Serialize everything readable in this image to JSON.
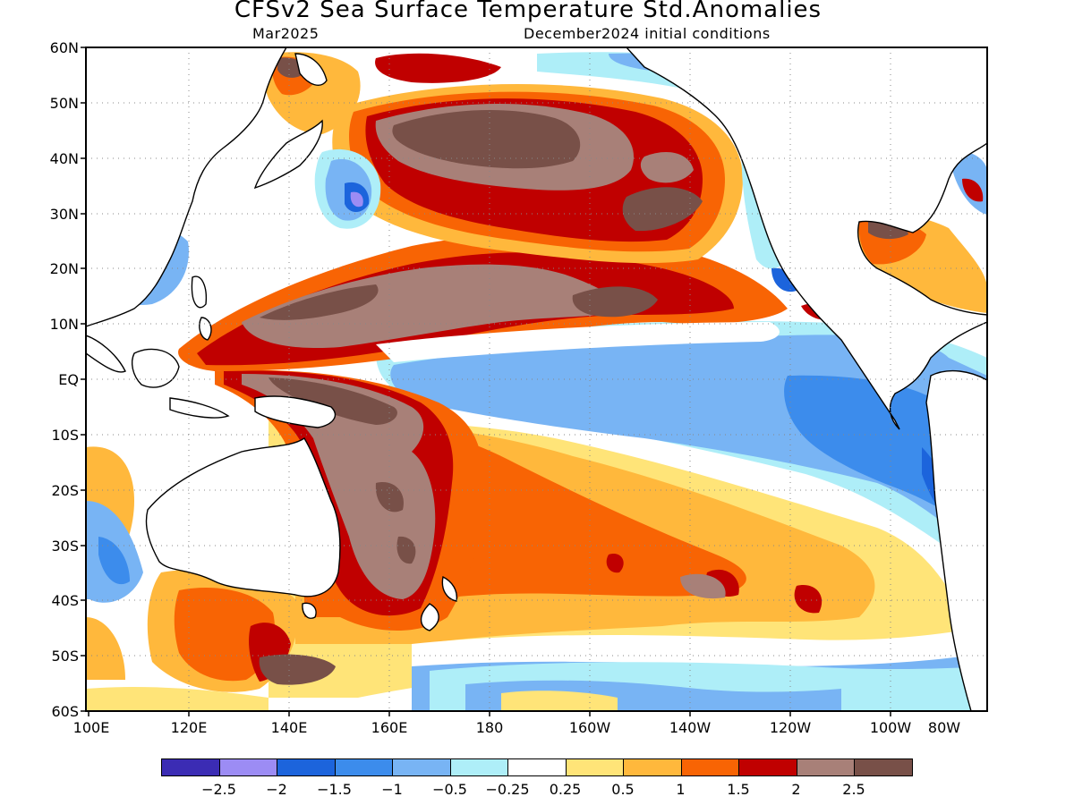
{
  "title": "CFSv2 Sea Surface Temperature Std.Anomalies",
  "valid_month": "Mar2025",
  "initial_conditions": "December2024 initial conditions",
  "lat_labels": [
    "60N",
    "50N",
    "40N",
    "30N",
    "20N",
    "10N",
    "EQ",
    "10S",
    "20S",
    "30S",
    "40S",
    "50S",
    "60S"
  ],
  "lon_labels": [
    "100E",
    "120E",
    "140E",
    "160E",
    "180",
    "160W",
    "140W",
    "120W",
    "100W",
    "80W"
  ],
  "colorbar": {
    "colors": [
      "#3b2cb4",
      "#9c8cf4",
      "#1c64dc",
      "#3c8cec",
      "#78b4f4",
      "#aeeef8",
      "#ffffff",
      "#ffe478",
      "#ffb83c",
      "#f86404",
      "#c00000",
      "#a88078",
      "#785048"
    ],
    "labels": [
      "−2.5",
      "−2",
      "−1.5",
      "−1",
      "−0.5",
      "−0.25",
      "0.25",
      "0.5",
      "1",
      "1.5",
      "2",
      "2.5"
    ]
  }
}
